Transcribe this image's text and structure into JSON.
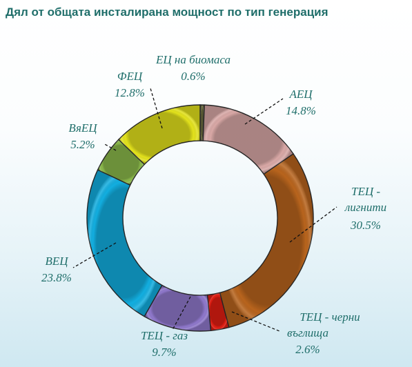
{
  "title": "Дял от общата инсталирана мощност по тип генерация",
  "chart_data": {
    "type": "donut",
    "title": "Дял от общата инсталирана мощност по тип генерация",
    "unit": "%",
    "slices": [
      {
        "label": "ЕЦ на биомаса",
        "display_value": "0.6%",
        "value": 0.6,
        "color": "#6b6b40"
      },
      {
        "label": "АЕЦ",
        "display_value": "14.8%",
        "value": 14.8,
        "color": "#d9a8a6"
      },
      {
        "label": "ТЕЦ - лигнити",
        "display_value": "30.5%",
        "value": 30.5,
        "color": "#b8641d"
      },
      {
        "label": "ТЕЦ - черни въглища",
        "display_value": "2.6%",
        "value": 2.6,
        "color": "#e11d12"
      },
      {
        "label": "ТЕЦ - газ",
        "display_value": "9.7%",
        "value": 9.7,
        "color": "#8f78cc"
      },
      {
        "label": "ВЕЦ",
        "display_value": "23.8%",
        "value": 23.8,
        "color": "#12aee0"
      },
      {
        "label": "ВяЕЦ",
        "display_value": "5.2%",
        "value": 5.2,
        "color": "#8ab84a"
      },
      {
        "label": "ФЕЦ",
        "display_value": "12.8%",
        "value": 12.8,
        "color": "#e3e21c"
      }
    ],
    "legend": "none",
    "start_angle_deg": 0,
    "direction": "clockwise"
  }
}
